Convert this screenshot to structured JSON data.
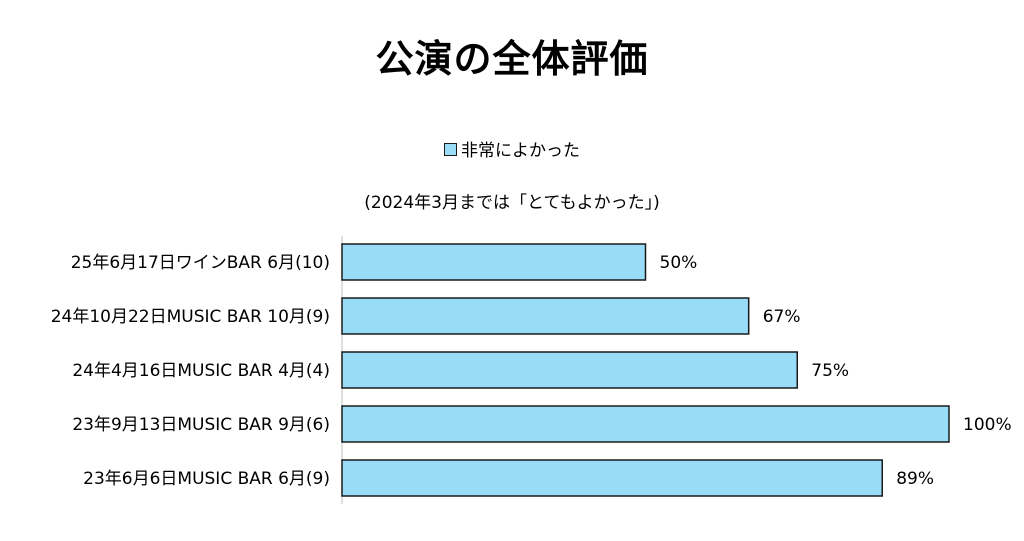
{
  "chart_data": {
    "type": "bar",
    "orientation": "horizontal",
    "title": "公演の全体評価",
    "subtitle": "(2024年3月までは「とてもよかった」)",
    "categories": [
      "25年6月17日ワインBAR 6月(10)",
      "24年10月22日MUSIC BAR 10月(9)",
      "24年4月16日MUSIC BAR 4月(4)",
      "23年9月13日MUSIC BAR 9月(6)",
      "23年6月6日MUSIC BAR 6月(9)"
    ],
    "series": [
      {
        "name": "非常によかった",
        "values": [
          50,
          67,
          75,
          100,
          89
        ],
        "color": "#99dcf8"
      }
    ],
    "value_labels": [
      "50%",
      "67%",
      "75%",
      "100%",
      "89%"
    ],
    "xlim": [
      0,
      100
    ],
    "grid": false,
    "legend_position": "top"
  }
}
